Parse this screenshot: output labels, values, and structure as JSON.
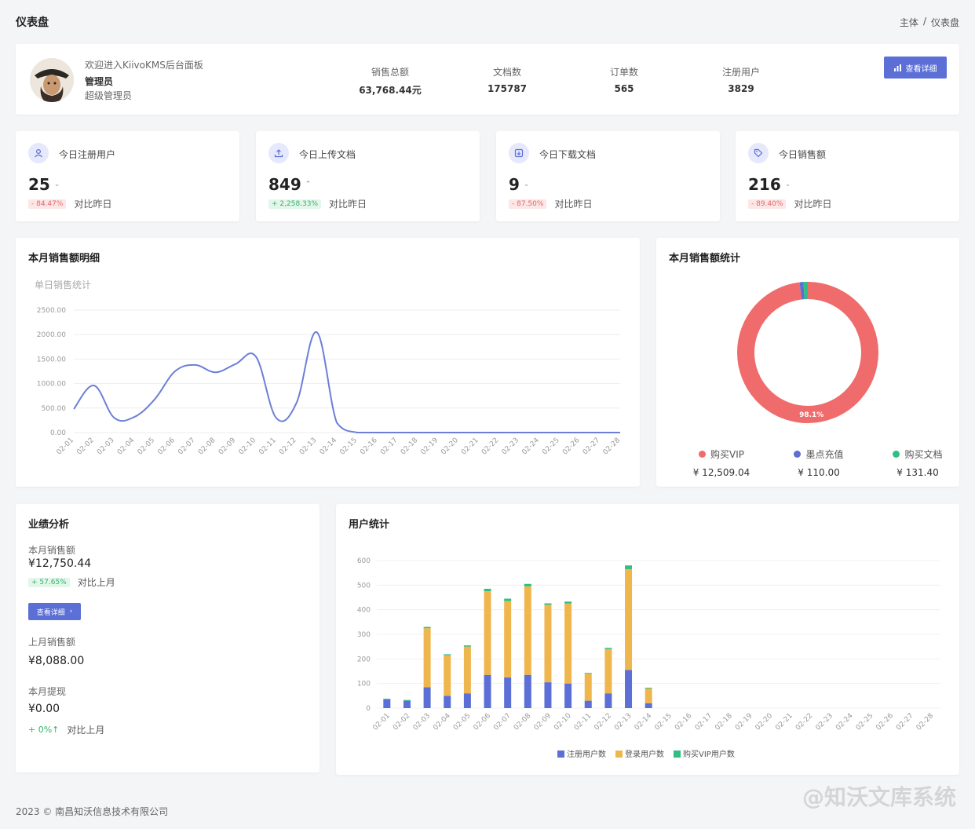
{
  "header": {
    "title": "仪表盘",
    "breadcrumb": [
      "主体",
      "/",
      "仪表盘"
    ]
  },
  "profile": {
    "welcome": "欢迎进入KiivoKMS后台面板",
    "name": "管理员",
    "role": "超级管理员",
    "stats": [
      {
        "label": "销售总额",
        "value": "63,768.44元"
      },
      {
        "label": "文档数",
        "value": "175787"
      },
      {
        "label": "订单数",
        "value": "565"
      },
      {
        "label": "注册用户",
        "value": "3829"
      }
    ],
    "detail_button": "查看详细"
  },
  "today_cards": [
    {
      "title": "今日注册用户",
      "value": "25",
      "trend": "down",
      "pct": "- 84.47%",
      "compare": "对比昨日",
      "icon": "user-icon"
    },
    {
      "title": "今日上传文档",
      "value": "849",
      "trend": "up",
      "pct": "+ 2,258.33%",
      "compare": "对比昨日",
      "icon": "upload-icon"
    },
    {
      "title": "今日下载文档",
      "value": "9",
      "trend": "down",
      "pct": "- 87.50%",
      "compare": "对比昨日",
      "icon": "download-icon"
    },
    {
      "title": "今日销售额",
      "value": "216",
      "trend": "down",
      "pct": "- 89.40%",
      "compare": "对比昨日",
      "icon": "tag-icon"
    }
  ],
  "sales_detail": {
    "title": "本月销售额明细",
    "chart_title": "单日销售统计"
  },
  "sales_pie": {
    "title": "本月销售额统计",
    "center_label": "98.1%",
    "legend": [
      {
        "name": "购买VIP",
        "value": "¥ 12,509.04",
        "color": "#f06b6b"
      },
      {
        "name": "墨点充值",
        "value": "¥ 110.00",
        "color": "#5b6fd6"
      },
      {
        "name": "购买文档",
        "value": "¥ 131.40",
        "color": "#2fbf83"
      }
    ]
  },
  "performance": {
    "title": "业绩分析",
    "month_label": "本月销售额",
    "month_value": "¥12,750.44",
    "month_pct": "+ 57.65%",
    "month_compare": "对比上月",
    "detail_button": "查看详细",
    "last_label": "上月销售额",
    "last_value": "¥8,088.00",
    "withdraw_label": "本月提现",
    "withdraw_value": "¥0.00",
    "withdraw_pct": "+ 0%↑",
    "withdraw_compare": "对比上月"
  },
  "user_stats": {
    "title": "用户统计"
  },
  "footer": {
    "copyright": "2023 © 南昌知沃信息技术有限公司"
  },
  "watermark": "@知沃文库系统",
  "chart_data": [
    {
      "type": "line",
      "title": "单日销售统计",
      "x": [
        "02-01",
        "02-02",
        "02-03",
        "02-04",
        "02-05",
        "02-06",
        "02-07",
        "02-08",
        "02-09",
        "02-10",
        "02-11",
        "02-12",
        "02-13",
        "02-14",
        "02-15",
        "02-16",
        "02-17",
        "02-18",
        "02-19",
        "02-20",
        "02-21",
        "02-22",
        "02-23",
        "02-24",
        "02-25",
        "02-26",
        "02-27",
        "02-28"
      ],
      "y_ticks": [
        "0.00",
        "500.00",
        "1000.00",
        "1500.00",
        "2000.00",
        "2500.00"
      ],
      "ylim": [
        0,
        2500
      ],
      "series": [
        {
          "values": [
            480,
            960,
            300,
            320,
            680,
            1250,
            1380,
            1230,
            1400,
            1550,
            300,
            600,
            2050,
            200,
            0,
            0,
            0,
            0,
            0,
            0,
            0,
            0,
            0,
            0,
            0,
            0,
            0,
            0
          ]
        }
      ]
    },
    {
      "type": "pie",
      "title": "本月销售额统计",
      "slices": [
        {
          "name": "购买VIP",
          "value": 12509.04
        },
        {
          "name": "墨点充值",
          "value": 110.0
        },
        {
          "name": "购买文档",
          "value": 131.4
        }
      ]
    },
    {
      "type": "bar",
      "stacked": true,
      "x": [
        "02-01",
        "02-02",
        "02-03",
        "02-04",
        "02-05",
        "02-06",
        "02-07",
        "02-08",
        "02-09",
        "02-10",
        "02-11",
        "02-12",
        "02-13",
        "02-14",
        "02-15",
        "02-16",
        "02-17",
        "02-18",
        "02-19",
        "02-20",
        "02-21",
        "02-22",
        "02-23",
        "02-24",
        "02-25",
        "02-26",
        "02-27",
        "02-28"
      ],
      "y_ticks": [
        "0",
        "100",
        "200",
        "300",
        "400",
        "500",
        "600"
      ],
      "ylim": [
        0,
        600
      ],
      "series": [
        {
          "name": "注册用户数",
          "color": "#5b6fd6",
          "values": [
            35,
            30,
            85,
            50,
            60,
            135,
            125,
            135,
            105,
            100,
            30,
            60,
            155,
            20,
            0,
            0,
            0,
            0,
            0,
            0,
            0,
            0,
            0,
            0,
            0,
            0,
            0,
            0
          ]
        },
        {
          "name": "登录用户数",
          "color": "#f0b64e",
          "values": [
            0,
            0,
            240,
            165,
            190,
            340,
            310,
            360,
            315,
            325,
            110,
            180,
            410,
            60,
            0,
            0,
            0,
            0,
            0,
            0,
            0,
            0,
            0,
            0,
            0,
            0,
            0,
            0
          ]
        },
        {
          "name": "购买VIP用户数",
          "color": "#2fbf83",
          "values": [
            3,
            3,
            5,
            4,
            5,
            10,
            10,
            10,
            6,
            8,
            3,
            5,
            15,
            3,
            0,
            0,
            0,
            0,
            0,
            0,
            0,
            0,
            0,
            0,
            0,
            0,
            0,
            0
          ]
        }
      ]
    }
  ]
}
